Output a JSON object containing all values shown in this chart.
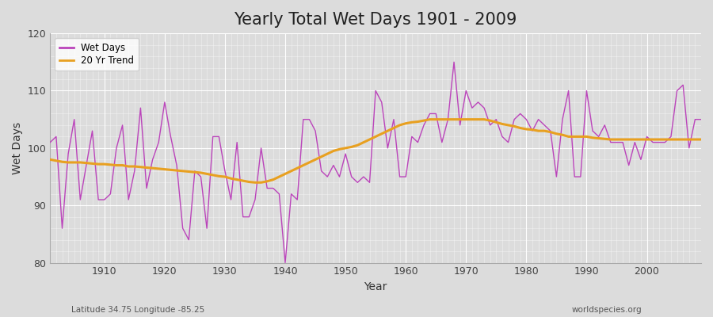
{
  "title": "Yearly Total Wet Days 1901 - 2009",
  "xlabel": "Year",
  "ylabel": "Wet Days",
  "subtitle_left": "Latitude 34.75 Longitude -85.25",
  "subtitle_right": "worldspecies.org",
  "ylim": [
    80,
    120
  ],
  "xlim": [
    1901,
    2009
  ],
  "legend_labels": [
    "Wet Days",
    "20 Yr Trend"
  ],
  "wet_days_color": "#bb44bb",
  "trend_color": "#e8a020",
  "background_color": "#dcdcdc",
  "years": [
    1901,
    1902,
    1903,
    1904,
    1905,
    1906,
    1907,
    1908,
    1909,
    1910,
    1911,
    1912,
    1913,
    1914,
    1915,
    1916,
    1917,
    1918,
    1919,
    1920,
    1921,
    1922,
    1923,
    1924,
    1925,
    1926,
    1927,
    1928,
    1929,
    1930,
    1931,
    1932,
    1933,
    1934,
    1935,
    1936,
    1937,
    1938,
    1939,
    1940,
    1941,
    1942,
    1943,
    1944,
    1945,
    1946,
    1947,
    1948,
    1949,
    1950,
    1951,
    1952,
    1953,
    1954,
    1955,
    1956,
    1957,
    1958,
    1959,
    1960,
    1961,
    1962,
    1963,
    1964,
    1965,
    1966,
    1967,
    1968,
    1969,
    1970,
    1971,
    1972,
    1973,
    1974,
    1975,
    1976,
    1977,
    1978,
    1979,
    1980,
    1981,
    1982,
    1983,
    1984,
    1985,
    1986,
    1987,
    1988,
    1989,
    1990,
    1991,
    1992,
    1993,
    1994,
    1995,
    1996,
    1997,
    1998,
    1999,
    2000,
    2001,
    2002,
    2003,
    2004,
    2005,
    2006,
    2007,
    2008,
    2009
  ],
  "wet_days": [
    101,
    102,
    86,
    99,
    105,
    91,
    97,
    103,
    91,
    91,
    92,
    100,
    104,
    91,
    96,
    107,
    93,
    98,
    101,
    108,
    102,
    97,
    86,
    84,
    96,
    95,
    86,
    102,
    102,
    96,
    91,
    101,
    88,
    88,
    91,
    100,
    93,
    93,
    92,
    80,
    92,
    91,
    105,
    105,
    103,
    96,
    95,
    97,
    95,
    99,
    95,
    94,
    95,
    94,
    110,
    108,
    100,
    105,
    95,
    95,
    102,
    101,
    104,
    106,
    106,
    101,
    105,
    115,
    104,
    110,
    107,
    108,
    107,
    104,
    105,
    102,
    101,
    105,
    106,
    105,
    103,
    105,
    104,
    103,
    95,
    105,
    110,
    95,
    95,
    110,
    103,
    102,
    104,
    101,
    101,
    101,
    97,
    101,
    98,
    102,
    101,
    101,
    101,
    102,
    110,
    111,
    100,
    105,
    105
  ],
  "trend": [
    98.0,
    97.8,
    97.6,
    97.5,
    97.5,
    97.5,
    97.4,
    97.3,
    97.2,
    97.2,
    97.1,
    97.0,
    97.0,
    96.8,
    96.8,
    96.7,
    96.6,
    96.5,
    96.4,
    96.3,
    96.2,
    96.1,
    96.0,
    95.9,
    95.8,
    95.7,
    95.5,
    95.3,
    95.1,
    95.0,
    94.7,
    94.5,
    94.3,
    94.1,
    94.0,
    94.0,
    94.2,
    94.5,
    95.0,
    95.5,
    96.0,
    96.5,
    97.0,
    97.5,
    98.0,
    98.5,
    99.0,
    99.5,
    99.8,
    100.0,
    100.2,
    100.5,
    101.0,
    101.5,
    102.0,
    102.5,
    103.0,
    103.5,
    104.0,
    104.3,
    104.5,
    104.6,
    104.8,
    105.0,
    105.0,
    105.0,
    105.0,
    105.0,
    105.0,
    105.0,
    105.0,
    105.0,
    105.0,
    104.8,
    104.5,
    104.2,
    104.0,
    103.8,
    103.5,
    103.3,
    103.2,
    103.0,
    103.0,
    102.8,
    102.5,
    102.3,
    102.0,
    102.0,
    102.0,
    102.0,
    101.8,
    101.7,
    101.6,
    101.5,
    101.5,
    101.5,
    101.5,
    101.5,
    101.5,
    101.5,
    101.5,
    101.5,
    101.5,
    101.5,
    101.5,
    101.5,
    101.5,
    101.5,
    101.5
  ]
}
